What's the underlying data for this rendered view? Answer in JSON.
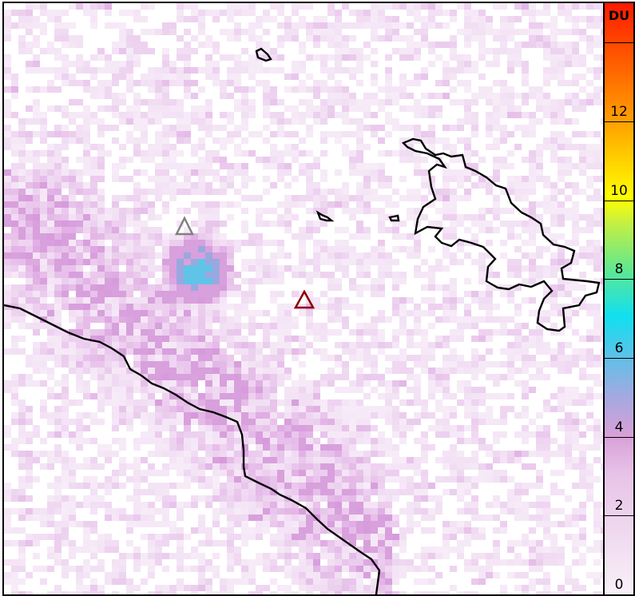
{
  "colorbar": {
    "unit_label": "DU",
    "range": [
      0,
      15
    ],
    "ticks": [
      0,
      2,
      4,
      6,
      8,
      10,
      12,
      14
    ],
    "tick_labels": [
      "0",
      "2",
      "4",
      "6",
      "8",
      "10",
      "12",
      ""
    ],
    "colors": [
      "#ffffff",
      "#e8c8ea",
      "#d89ad8",
      "#a8a8e0",
      "#60c0e8",
      "#10e0f0",
      "#60e890",
      "#c0f040",
      "#ffff00",
      "#ffb000",
      "#ff6000",
      "#ff1a00"
    ]
  },
  "markers": [
    {
      "name": "volcano-gray",
      "color": "#808080"
    },
    {
      "name": "volcano-red",
      "color": "#8b0000"
    }
  ]
}
